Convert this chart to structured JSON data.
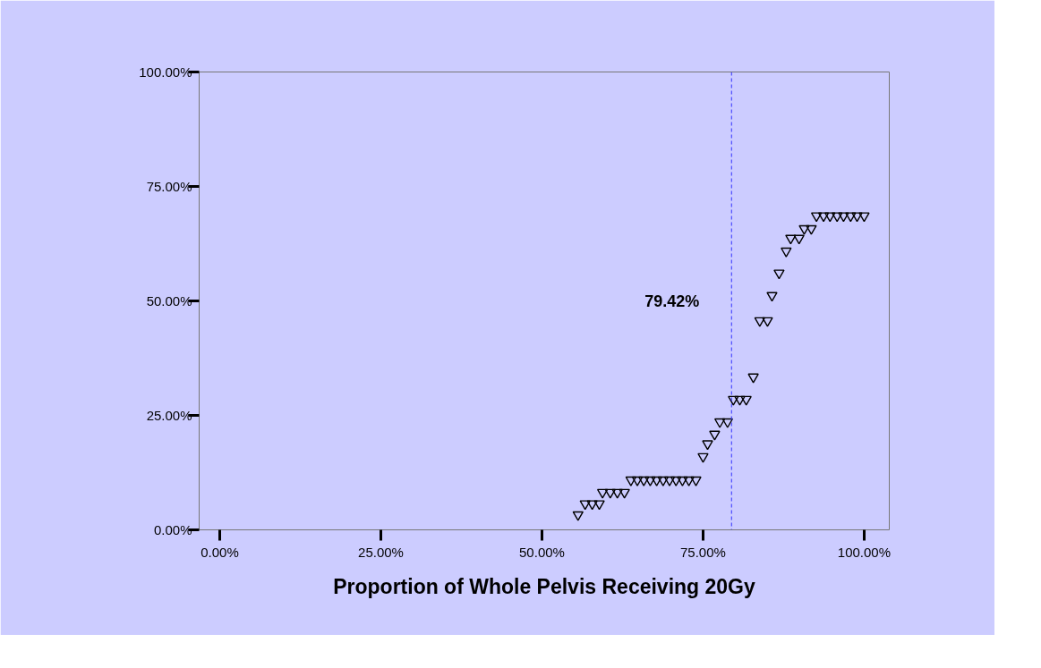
{
  "chart_data": {
    "type": "scatter",
    "xlabel": "Proportion of Whole Pelvis Receiving 20Gy",
    "x": [
      55.6,
      56.7,
      57.8,
      58.9,
      59.4,
      60.6,
      61.7,
      62.8,
      63.8,
      64.8,
      65.8,
      66.8,
      67.8,
      68.8,
      69.8,
      70.8,
      71.8,
      72.8,
      73.9,
      75.0,
      75.7,
      76.8,
      77.6,
      78.8,
      79.7,
      80.7,
      81.7,
      82.8,
      83.8,
      85.0,
      85.7,
      86.8,
      87.9,
      88.6,
      89.9,
      90.7,
      91.8,
      92.6,
      93.7,
      94.7,
      95.8,
      96.8,
      97.9,
      98.9,
      100.0
    ],
    "series": [
      {
        "color": "#000000",
        "values": [
          3.3,
          5.7,
          5.7,
          5.7,
          8.2,
          8.2,
          8.2,
          8.2,
          10.9,
          10.9,
          10.9,
          10.9,
          10.9,
          10.9,
          10.9,
          10.9,
          10.9,
          10.9,
          10.9,
          16.0,
          18.8,
          20.9,
          23.6,
          23.6,
          28.5,
          28.5,
          28.5,
          33.4,
          45.7,
          45.7,
          51.2,
          56.1,
          60.9,
          63.7,
          63.7,
          65.8,
          65.8,
          68.6,
          68.6,
          68.6,
          68.6,
          68.6,
          68.6,
          68.6,
          68.6
        ]
      }
    ],
    "xlim": [
      -3.2,
      103.9
    ],
    "ylim": [
      0,
      100
    ],
    "xticks": [
      {
        "value": 0,
        "label": "0.00%"
      },
      {
        "value": 25,
        "label": "25.00%"
      },
      {
        "value": 50,
        "label": "50.00%"
      },
      {
        "value": 75,
        "label": "75.00%"
      },
      {
        "value": 100,
        "label": "100.00%"
      }
    ],
    "yticks": [
      {
        "value": 0,
        "label": "0.00%"
      },
      {
        "value": 25,
        "label": "25.00%"
      },
      {
        "value": 50,
        "label": "50.00%"
      },
      {
        "value": 75,
        "label": "75.00%"
      },
      {
        "value": 100,
        "label": "100.00%"
      }
    ],
    "ref_lines": [
      {
        "axis": "x",
        "value": 79.42,
        "label": "79.42%",
        "color": "#3333ff",
        "line_style": "dashed"
      }
    ],
    "marker": "triangle"
  }
}
